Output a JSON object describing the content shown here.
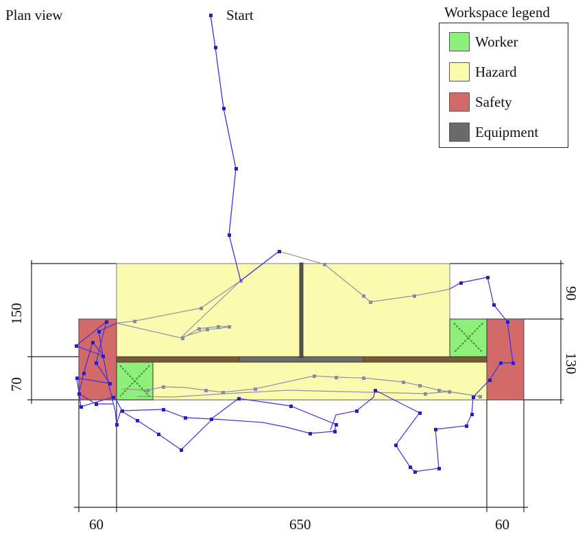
{
  "title": "Plan view",
  "start_label": "Start",
  "legend": {
    "title": "Workspace legend",
    "items": [
      {
        "label": "Worker",
        "color": "#8ef07a"
      },
      {
        "label": "Hazard",
        "color": "#fbfbb0"
      },
      {
        "label": "Safety",
        "color": "#d26a6a"
      },
      {
        "label": "Equipment",
        "color": "#6a6a6a"
      }
    ]
  },
  "dimensions": {
    "bottom": [
      "60",
      "650",
      "60"
    ],
    "left": [
      "150",
      "70"
    ],
    "right": [
      "90",
      "130"
    ]
  },
  "colors": {
    "path": "#3b2fe0",
    "path_marker": "#2a1fb8",
    "inner_path": "#9090a8",
    "bar": "#7a5a32",
    "post": "#555555",
    "outline": "#222222"
  }
}
